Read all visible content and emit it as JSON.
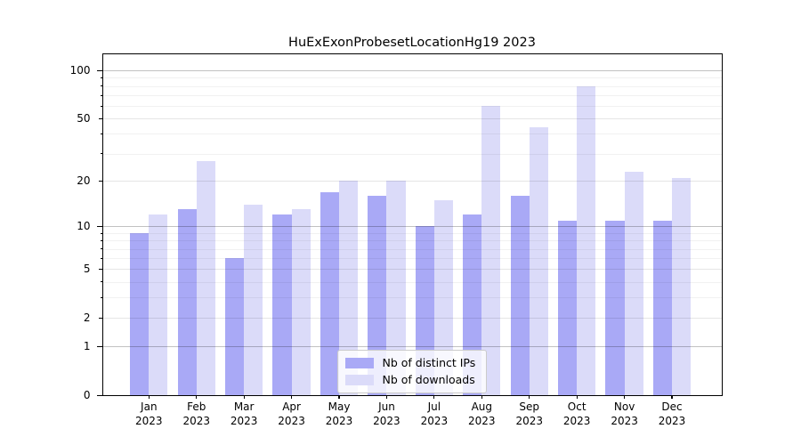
{
  "title": "HuExExonProbesetLocationHg19 2023",
  "colors": {
    "ips": "#a9a9f6",
    "downloads": "#dbdbf9",
    "frame": "#000000",
    "grid_major": "#bfbfbf",
    "grid_minor": "#e9e9e9"
  },
  "legend": {
    "items": [
      {
        "label": "Nb of distinct IPs",
        "color": "#a9a9f6"
      },
      {
        "label": "Nb of downloads",
        "color": "#dbdbf9"
      }
    ]
  },
  "chart_data": {
    "type": "bar",
    "title": "HuExExonProbesetLocationHg19 2023",
    "categories": [
      "Jan",
      "Feb",
      "Mar",
      "Apr",
      "May",
      "Jun",
      "Jul",
      "Aug",
      "Sep",
      "Oct",
      "Nov",
      "Dec"
    ],
    "year_label": "2023",
    "series": [
      {
        "name": "Nb of distinct IPs",
        "color": "#a9a9f6",
        "values": [
          9,
          13,
          6,
          12,
          17,
          16,
          10,
          12,
          16,
          11,
          11,
          11
        ]
      },
      {
        "name": "Nb of downloads",
        "color": "#dbdbf9",
        "values": [
          12,
          27,
          14,
          13,
          20,
          20,
          15,
          60,
          44,
          80,
          23,
          21
        ]
      }
    ],
    "xlabel": "",
    "ylabel": "",
    "yscale": "log10(1+x)",
    "ylim": [
      0,
      130
    ],
    "y_tick_labels": [
      100,
      50,
      20,
      10,
      5,
      2,
      1,
      0
    ],
    "y_major_ticks": [
      0,
      1,
      10,
      100
    ],
    "y_minor_labeled_ticks": [
      2,
      5,
      20,
      50
    ],
    "y_minor_unlabeled_ticks": [
      3,
      4,
      6,
      7,
      8,
      9,
      30,
      40,
      60,
      70,
      80,
      90
    ],
    "grid": "on",
    "legend_position": "lower center"
  }
}
